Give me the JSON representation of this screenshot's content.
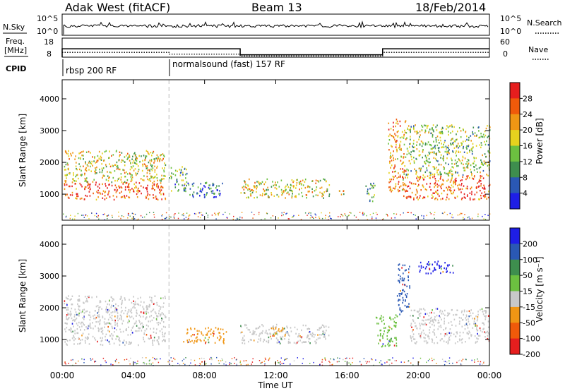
{
  "header": {
    "station": "Adak West (fitACF)",
    "beam": "Beam 13",
    "date": "18/Feb/2014"
  },
  "sky_panel": {
    "left_label": "N.Sky",
    "left_ticks": [
      "10^5",
      "10^0"
    ],
    "right_label": "N.Search",
    "right_ticks": [
      "10^5",
      "10^0"
    ]
  },
  "freq_panel": {
    "left_label_line1": "Freq.",
    "left_label_line2": "[MHz]",
    "left_ticks": [
      "18",
      "8"
    ],
    "right_label": "Nave",
    "right_ticks": [
      "60",
      "0"
    ]
  },
  "cpid": {
    "label": "CPID",
    "modes": [
      {
        "name": "rbsp 200 RF",
        "start_hour": 0
      },
      {
        "name": "normalsound (fast) 157 RF",
        "start_hour": 6
      }
    ]
  },
  "chart_data": [
    {
      "type": "heatmap",
      "title": "Power",
      "x_ticks": [
        "00:00",
        "04:00",
        "08:00",
        "12:00",
        "16:00",
        "20:00",
        "00:00"
      ],
      "xlim_hours": [
        0,
        24
      ],
      "ylabel": "Slant Range [km]",
      "ylim": [
        180,
        4600
      ],
      "y_ticks": [
        "1000",
        "2000",
        "3000",
        "4000"
      ],
      "colorbar_label": "Power [dB]",
      "colorbar_ticks": [
        "4",
        "8",
        "12",
        "16",
        "20",
        "24",
        "28"
      ],
      "colorbar_colors": [
        "#1e1ee6",
        "#2a58b4",
        "#3e8e4e",
        "#6cc040",
        "#e6d21e",
        "#f09614",
        "#f05a0a",
        "#e61e1e"
      ],
      "blobs": [
        {
          "start": 0.1,
          "end": 5.8,
          "r0": 850,
          "r1": 1400,
          "level": 0.85
        },
        {
          "start": 0.1,
          "end": 5.8,
          "r0": 1400,
          "r1": 2400,
          "level": 0.55
        },
        {
          "start": 6.0,
          "end": 7.0,
          "r0": 1100,
          "r1": 1900,
          "level": 0.35
        },
        {
          "start": 7.0,
          "end": 9.0,
          "r0": 900,
          "r1": 1400,
          "level": 0.25
        },
        {
          "start": 10.0,
          "end": 15.0,
          "r0": 900,
          "r1": 1500,
          "level": 0.55
        },
        {
          "start": 15.5,
          "end": 16.0,
          "r0": 1000,
          "r1": 1200,
          "level": 0.6
        },
        {
          "start": 17.0,
          "end": 17.6,
          "r0": 800,
          "r1": 1400,
          "level": 0.3
        },
        {
          "start": 18.3,
          "end": 19.3,
          "r0": 1100,
          "r1": 3400,
          "level": 0.7
        },
        {
          "start": 19.0,
          "end": 24.0,
          "r0": 850,
          "r1": 1600,
          "level": 0.8
        },
        {
          "start": 19.3,
          "end": 24.0,
          "r0": 1600,
          "r1": 3200,
          "level": 0.45
        }
      ]
    },
    {
      "type": "heatmap",
      "title": "Velocity",
      "x_ticks": [
        "00:00",
        "04:00",
        "08:00",
        "12:00",
        "16:00",
        "20:00",
        "00:00"
      ],
      "xlim_hours": [
        0,
        24
      ],
      "xlabel": "Time UT",
      "ylabel": "Slant Range [km]",
      "ylim": [
        180,
        4600
      ],
      "y_ticks": [
        "1000",
        "2000",
        "3000",
        "4000"
      ],
      "colorbar_label": "Velocity [m s⁻¹]",
      "colorbar_ticks": [
        "200",
        "100",
        "50",
        "15",
        "-15",
        "-50",
        "-100",
        "-200"
      ],
      "colorbar_colors": [
        "#1e1ee6",
        "#2a58b4",
        "#3e8e4e",
        "#6cc040",
        "#c8c8c8",
        "#f09614",
        "#f05a0a",
        "#e61e1e",
        "#e61e1e"
      ],
      "blobs": [
        {
          "start": 0.1,
          "end": 5.8,
          "r0": 850,
          "r1": 2400,
          "color": "#c8c8c8"
        },
        {
          "start": 6.8,
          "end": 9.2,
          "r0": 900,
          "r1": 1400,
          "color": "#f09614"
        },
        {
          "start": 10.0,
          "end": 15.0,
          "r0": 900,
          "r1": 1500,
          "color": "#c8c8c8"
        },
        {
          "start": 11.5,
          "end": 12.5,
          "r0": 1100,
          "r1": 1400,
          "color": "#f09614"
        },
        {
          "start": 17.6,
          "end": 18.8,
          "r0": 800,
          "r1": 1800,
          "color": "#6cc040"
        },
        {
          "start": 18.8,
          "end": 19.5,
          "r0": 1800,
          "r1": 3400,
          "color": "#2a58b4"
        },
        {
          "start": 19.5,
          "end": 24.0,
          "r0": 900,
          "r1": 2000,
          "color": "#c8c8c8"
        },
        {
          "start": 20.0,
          "end": 22.0,
          "r0": 3100,
          "r1": 3500,
          "color": "#1e1ee6"
        }
      ]
    }
  ]
}
